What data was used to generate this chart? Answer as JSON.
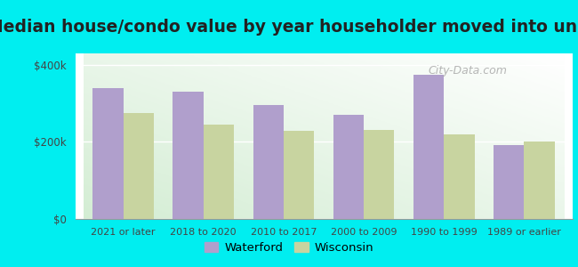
{
  "title": "Median house/condo value by year householder moved into unit",
  "categories": [
    "2021 or later",
    "2018 to 2020",
    "2010 to 2017",
    "2000 to 2009",
    "1990 to 1999",
    "1989 or earlier"
  ],
  "waterford_values": [
    340000,
    330000,
    295000,
    270000,
    375000,
    193000
  ],
  "wisconsin_values": [
    275000,
    245000,
    230000,
    232000,
    220000,
    200000
  ],
  "waterford_color": "#b09fcc",
  "wisconsin_color": "#c8d4a0",
  "background_color": "#00eef0",
  "plot_bg_color": "#eef8ee",
  "ytick_labels": [
    "$0",
    "$200k",
    "$400k"
  ],
  "ytick_values": [
    0,
    200000,
    400000
  ],
  "ylim": [
    0,
    430000
  ],
  "bar_width": 0.38,
  "title_fontsize": 13.5,
  "legend_labels": [
    "Waterford",
    "Wisconsin"
  ],
  "watermark": "City-Data.com"
}
